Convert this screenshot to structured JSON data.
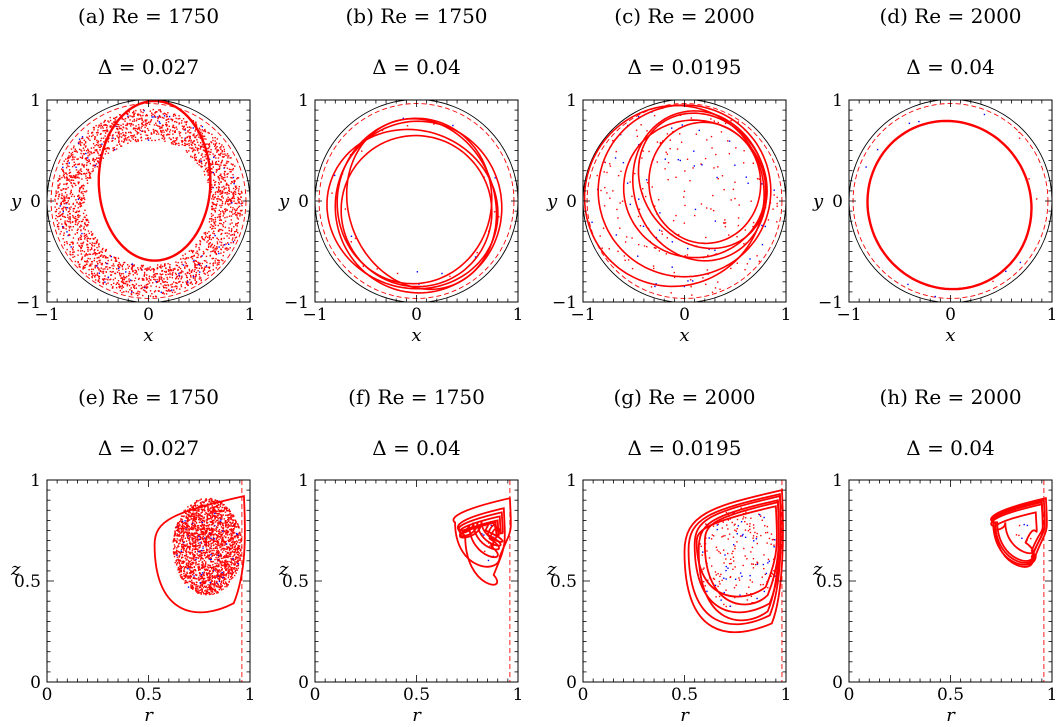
{
  "colors": {
    "primary": "#ff0000",
    "secondary": "#0000ff",
    "boundary": "#000000"
  },
  "chart_data": [
    {
      "type": "scatter",
      "panel": "(a)",
      "title": "(a) Re = 1750",
      "subtitle": "Δ = 0.027",
      "xlabel": "x",
      "ylabel": "y",
      "xlim": [
        -1,
        1
      ],
      "ylim": [
        -1,
        1
      ],
      "xticks": [
        "−1",
        "0",
        "1"
      ],
      "yticks": [
        "−1",
        "0",
        "1"
      ],
      "boundary_radius": 1.0,
      "dashed_radius": 0.96,
      "curve": {
        "cx": 0.06,
        "cy": 0.2,
        "rx": 0.55,
        "ry": 0.79,
        "tilt": 0
      },
      "scatter": {
        "points": 2600,
        "cx": 0.0,
        "cy": -0.02,
        "rin": 0.62,
        "rout": 0.93,
        "blue_frac": 0.04
      }
    },
    {
      "type": "scatter",
      "panel": "(b)",
      "title": "(b) Re = 1750",
      "subtitle": "Δ = 0.04",
      "xlabel": "x",
      "ylabel": "y",
      "xlim": [
        -1,
        1
      ],
      "ylim": [
        -1,
        1
      ],
      "xticks": [
        "−1",
        "0",
        "1"
      ],
      "yticks": [
        "−1",
        "0",
        "1"
      ],
      "boundary_radius": 1.0,
      "dashed_radius": 0.96,
      "loops": [
        {
          "cx": 0.02,
          "cy": -0.06,
          "rx": 0.82,
          "ry": 0.85,
          "tilt": 0.1
        },
        {
          "cx": -0.02,
          "cy": 0.0,
          "rx": 0.76,
          "ry": 0.82,
          "tilt": -0.15
        },
        {
          "cx": 0.05,
          "cy": -0.03,
          "rx": 0.72,
          "ry": 0.86,
          "tilt": 0.35
        },
        {
          "cx": -0.04,
          "cy": -0.08,
          "rx": 0.85,
          "ry": 0.78,
          "tilt": -0.35
        },
        {
          "cx": 0.0,
          "cy": -0.1,
          "rx": 0.74,
          "ry": 0.75,
          "tilt": 0.5
        }
      ],
      "scatter": {
        "points": 30,
        "cx": 0.0,
        "cy": 0.0,
        "rin": 0.7,
        "rout": 0.85,
        "blue_frac": 0.4
      }
    },
    {
      "type": "scatter",
      "panel": "(c)",
      "title": "(c) Re = 2000",
      "subtitle": "Δ = 0.0195",
      "xlabel": "x",
      "ylabel": "y",
      "xlim": [
        -1,
        1
      ],
      "ylim": [
        -1,
        1
      ],
      "xticks": [
        "−1",
        "0",
        "1"
      ],
      "yticks": [
        "−1",
        "0",
        "1"
      ],
      "boundary_radius": 1.0,
      "dashed_radius": 0.96,
      "loops": [
        {
          "cx": 0.0,
          "cy": 0.1,
          "rx": 0.85,
          "ry": 0.85,
          "tilt": 0
        },
        {
          "cx": 0.15,
          "cy": 0.15,
          "rx": 0.65,
          "ry": 0.75,
          "tilt": 0.3
        },
        {
          "cx": 0.1,
          "cy": 0.12,
          "rx": 0.7,
          "ry": 0.68,
          "tilt": -0.2
        },
        {
          "cx": 0.18,
          "cy": 0.2,
          "rx": 0.6,
          "ry": 0.7,
          "tilt": 0.6
        },
        {
          "cx": -0.1,
          "cy": 0.05,
          "rx": 0.88,
          "ry": 0.9,
          "tilt": -0.5
        },
        {
          "cx": 0.2,
          "cy": 0.18,
          "rx": 0.55,
          "ry": 0.6,
          "tilt": 0.1
        }
      ],
      "scatter": {
        "points": 260,
        "cx": 0.0,
        "cy": 0.0,
        "rin": 0.0,
        "rout": 0.95,
        "blue_frac": 0.2
      }
    },
    {
      "type": "scatter",
      "panel": "(d)",
      "title": "(d) Re = 2000",
      "subtitle": "Δ = 0.04",
      "xlabel": "x",
      "ylabel": "y",
      "xlim": [
        -1,
        1
      ],
      "ylim": [
        -1,
        1
      ],
      "xticks": [
        "−1",
        "0",
        "1"
      ],
      "yticks": [
        "−1",
        "0",
        "1"
      ],
      "boundary_radius": 1.0,
      "dashed_radius": 0.96,
      "curve": {
        "cx": -0.01,
        "cy": -0.04,
        "rx": 0.8,
        "ry": 0.84,
        "tilt": 0.45
      },
      "scatter": {
        "points": 14,
        "cx": 0.0,
        "cy": 0.0,
        "rin": 0.8,
        "rout": 0.96,
        "blue_frac": 0.7
      }
    },
    {
      "type": "scatter",
      "panel": "(e)",
      "title": "(e) Re = 1750",
      "subtitle": "Δ = 0.027",
      "xlabel": "r",
      "ylabel": "z",
      "xlim": [
        0,
        1
      ],
      "ylim": [
        0,
        1
      ],
      "xticks": [
        "0",
        "0.5",
        "1"
      ],
      "yticks": [
        "0",
        "0.5",
        "1"
      ],
      "dashed_x": 0.96,
      "loops": [
        {
          "tip": [
            0.97,
            0.92
          ],
          "left": 0.53,
          "bottom": 0.34
        }
      ],
      "scatter": {
        "points": 2200,
        "cx": 0.79,
        "cy": 0.67,
        "rx": 0.17,
        "ry": 0.24,
        "blue_frac": 0.02
      }
    },
    {
      "type": "scatter",
      "panel": "(f)",
      "title": "(f) Re = 1750",
      "subtitle": "Δ = 0.04",
      "xlabel": "r",
      "ylabel": "z",
      "xlim": [
        0,
        1
      ],
      "ylim": [
        0,
        1
      ],
      "xticks": [
        "0",
        "0.5",
        "1"
      ],
      "yticks": [
        "0",
        "0.5",
        "1"
      ],
      "dashed_x": 0.96,
      "loops": [
        {
          "tip": [
            0.96,
            0.91
          ],
          "left": 0.69,
          "bottom": 0.57
        },
        {
          "tip": [
            0.93,
            0.86
          ],
          "left": 0.74,
          "bottom": 0.48
        },
        {
          "tip": [
            0.92,
            0.84
          ],
          "left": 0.76,
          "bottom": 0.62
        },
        {
          "tip": [
            0.91,
            0.82
          ],
          "left": 0.78,
          "bottom": 0.66
        },
        {
          "tip": [
            0.9,
            0.8
          ],
          "left": 0.8,
          "bottom": 0.68
        },
        {
          "tip": [
            0.89,
            0.79
          ],
          "left": 0.82,
          "bottom": 0.7
        }
      ],
      "scatter": {
        "points": 16,
        "cx": 0.86,
        "cy": 0.7,
        "rx": 0.05,
        "ry": 0.1,
        "blue_frac": 0.5
      }
    },
    {
      "type": "scatter",
      "panel": "(g)",
      "title": "(g) Re = 2000",
      "subtitle": "Δ = 0.0195",
      "xlabel": "r",
      "ylabel": "z",
      "xlim": [
        0,
        1
      ],
      "ylim": [
        0,
        1
      ],
      "xticks": [
        "0",
        "0.5",
        "1"
      ],
      "yticks": [
        "0",
        "0.5",
        "1"
      ],
      "dashed_x": 0.98,
      "loops": [
        {
          "tip": [
            0.98,
            0.95
          ],
          "left": 0.5,
          "bottom": 0.24
        },
        {
          "tip": [
            0.97,
            0.93
          ],
          "left": 0.52,
          "bottom": 0.28
        },
        {
          "tip": [
            0.97,
            0.92
          ],
          "left": 0.55,
          "bottom": 0.34
        },
        {
          "tip": [
            0.96,
            0.9
          ],
          "left": 0.57,
          "bottom": 0.3
        },
        {
          "tip": [
            0.96,
            0.89
          ],
          "left": 0.6,
          "bottom": 0.38
        },
        {
          "tip": [
            0.95,
            0.87
          ],
          "left": 0.56,
          "bottom": 0.42
        }
      ],
      "scatter": {
        "points": 220,
        "cx": 0.76,
        "cy": 0.62,
        "rx": 0.2,
        "ry": 0.26,
        "blue_frac": 0.25
      }
    },
    {
      "type": "scatter",
      "panel": "(h)",
      "title": "(h) Re = 2000",
      "subtitle": "Δ = 0.04",
      "xlabel": "r",
      "ylabel": "z",
      "xlim": [
        0,
        1
      ],
      "ylim": [
        0,
        1
      ],
      "xticks": [
        "0",
        "0.5",
        "1"
      ],
      "yticks": [
        "0",
        "0.5",
        "1"
      ],
      "dashed_x": 0.96,
      "loops": [
        {
          "tip": [
            0.97,
            0.91
          ],
          "left": 0.71,
          "bottom": 0.58
        },
        {
          "tip": [
            0.96,
            0.9
          ],
          "left": 0.72,
          "bottom": 0.59
        },
        {
          "tip": [
            0.95,
            0.89
          ],
          "left": 0.73,
          "bottom": 0.6
        },
        {
          "tip": [
            0.95,
            0.88
          ],
          "left": 0.72,
          "bottom": 0.57
        },
        {
          "tip": [
            0.92,
            0.84
          ],
          "left": 0.77,
          "bottom": 0.64
        }
      ],
      "scatter": {
        "points": 8,
        "cx": 0.86,
        "cy": 0.72,
        "rx": 0.04,
        "ry": 0.08,
        "blue_frac": 0.6
      }
    }
  ]
}
